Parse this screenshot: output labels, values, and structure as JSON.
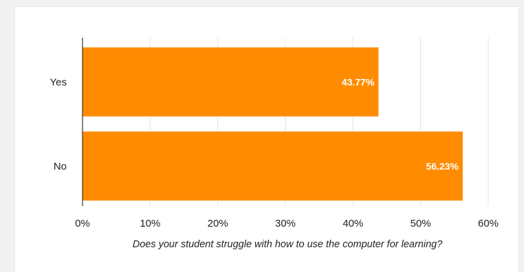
{
  "chart_data": {
    "type": "bar",
    "orientation": "horizontal",
    "categories": [
      "Yes",
      "No"
    ],
    "values": [
      43.77,
      56.23
    ],
    "value_labels": [
      "43.77%",
      "56.23%"
    ],
    "xlim": [
      0,
      60
    ],
    "xticks": [
      "0%",
      "10%",
      "20%",
      "30%",
      "40%",
      "50%",
      "60%"
    ],
    "xlabel": "Does your student struggle with how to use the computer for learning?",
    "grid": true,
    "bar_color": "#ff8c00"
  }
}
